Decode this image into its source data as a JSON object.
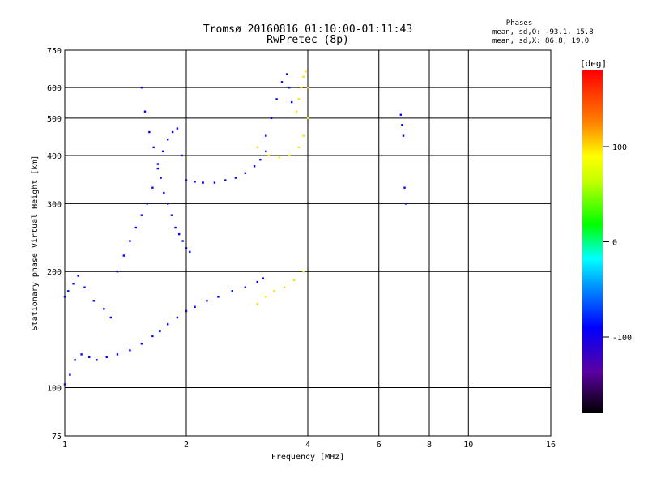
{
  "chart_data": {
    "type": "scatter",
    "title": "Tromsø 20160816 01:10:00-01:11:43",
    "subtitle": "RwPretec (8p)",
    "xlabel": "Frequency [MHz]",
    "ylabel": "Stationary phase Virtual Height [km]",
    "x_scale": "log2",
    "y_scale": "log",
    "xlim": [
      1,
      16
    ],
    "ylim": [
      75,
      750
    ],
    "x_ticks": [
      1,
      2,
      4,
      6,
      8,
      10,
      16
    ],
    "x_tick_labels": [
      "1",
      "2",
      "4",
      "6",
      "8",
      "10",
      "16"
    ],
    "y_ticks": [
      75,
      100,
      200,
      300,
      400,
      500,
      600,
      750
    ],
    "y_tick_labels": [
      "75",
      "100",
      "200",
      "300",
      "400",
      "500",
      "600",
      "750"
    ],
    "grid": true,
    "phase_box": {
      "heading": "Phases",
      "line_o": "mean, sd,O: -93.1, 15.8",
      "line_x": "mean, sd,X:  86.8, 19.0"
    },
    "colorbar": {
      "label": "[deg]",
      "range": [
        -180,
        180
      ],
      "ticks": [
        100,
        0,
        -100
      ],
      "tick_labels": [
        "100",
        "0",
        "-100"
      ]
    },
    "series": [
      {
        "color_deg": -100,
        "x": [
          1.0,
          1.03,
          1.06,
          1.1,
          1.15,
          1.2,
          1.27,
          1.35,
          1.45,
          1.55,
          1.65,
          1.72,
          1.8,
          1.9,
          2.0,
          2.1,
          2.25,
          2.4,
          2.6,
          2.8,
          3.0,
          3.1
        ],
        "y": [
          102,
          108,
          118,
          122,
          120,
          118,
          120,
          122,
          125,
          130,
          136,
          140,
          146,
          152,
          158,
          162,
          168,
          172,
          178,
          182,
          188,
          192
        ]
      },
      {
        "color_deg": -100,
        "x": [
          1.0,
          1.02,
          1.05,
          1.08,
          1.12,
          1.18,
          1.25,
          1.3,
          1.35,
          1.4,
          1.45,
          1.5,
          1.55,
          1.6,
          1.65,
          1.7,
          1.75,
          1.8,
          1.85,
          1.9,
          1.95
        ],
        "y": [
          172,
          178,
          186,
          195,
          182,
          168,
          160,
          152,
          200,
          220,
          240,
          260,
          280,
          300,
          330,
          370,
          410,
          440,
          460,
          470,
          400
        ]
      },
      {
        "color_deg": -100,
        "x": [
          1.55,
          1.58,
          1.62,
          1.66,
          1.7,
          1.73,
          1.76,
          1.8,
          1.84,
          1.88,
          1.92,
          1.96,
          2.0,
          2.04
        ],
        "y": [
          600,
          520,
          460,
          420,
          380,
          350,
          320,
          300,
          280,
          260,
          250,
          240,
          230,
          225
        ]
      },
      {
        "color_deg": -100,
        "x": [
          2.0,
          2.1,
          2.2,
          2.35,
          2.5,
          2.65,
          2.8,
          2.95,
          3.05,
          3.15
        ],
        "y": [
          345,
          342,
          340,
          340,
          345,
          350,
          360,
          375,
          390,
          410
        ]
      },
      {
        "color_deg": -100,
        "x": [
          3.15,
          3.25,
          3.35,
          3.45,
          3.55,
          3.6,
          3.65
        ],
        "y": [
          450,
          500,
          560,
          620,
          650,
          600,
          550
        ]
      },
      {
        "color_deg": 100,
        "x": [
          3.0,
          3.2,
          3.4,
          3.6,
          3.8,
          3.9,
          4.0
        ],
        "y": [
          420,
          400,
          395,
          400,
          420,
          450,
          500
        ]
      },
      {
        "color_deg": 100,
        "x": [
          3.75,
          3.8,
          3.85,
          3.9,
          3.95,
          4.0
        ],
        "y": [
          520,
          560,
          600,
          640,
          660,
          600
        ]
      },
      {
        "color_deg": 100,
        "x": [
          3.0,
          3.15,
          3.3,
          3.5,
          3.7,
          3.9
        ],
        "y": [
          165,
          172,
          178,
          182,
          190,
          200
        ]
      },
      {
        "color_deg": -100,
        "x": [
          6.8,
          6.85,
          6.9,
          6.95,
          7.0
        ],
        "y": [
          510,
          480,
          450,
          330,
          300
        ]
      }
    ]
  }
}
